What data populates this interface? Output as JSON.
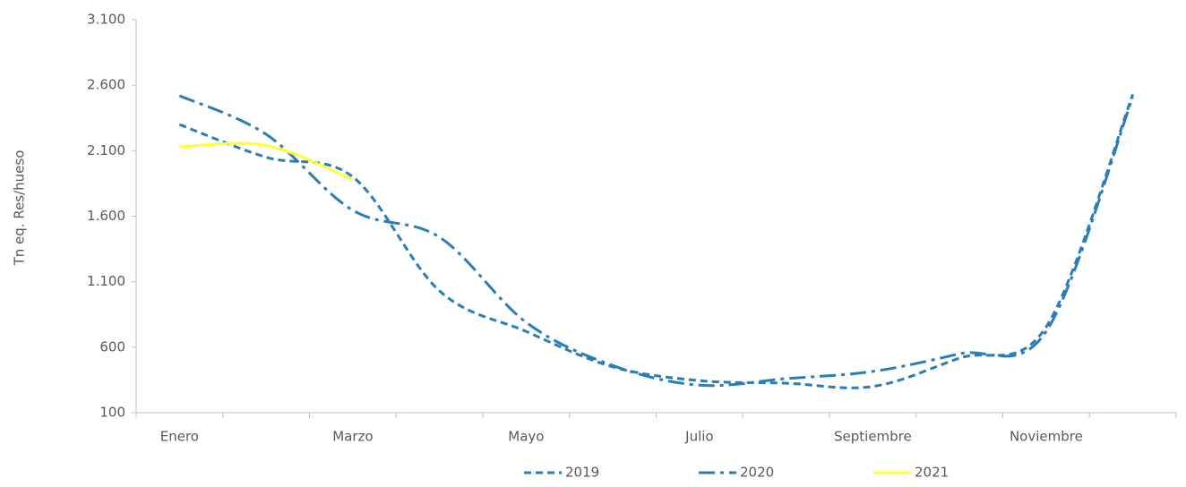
{
  "chart_data": {
    "type": "line",
    "y_label": "Tn eq. Res/hueso",
    "categories": [
      "Enero",
      null,
      "Marzo",
      null,
      "Mayo",
      null,
      "Julio",
      null,
      "Septiembre",
      null,
      "Noviembre",
      null
    ],
    "series": [
      {
        "name": "2019",
        "color": "#2a7db5",
        "dash": "dashed",
        "values": [
          2300,
          2050,
          1900,
          1030,
          720,
          450,
          345,
          325,
          300,
          517,
          755,
          2530
        ]
      },
      {
        "name": "2020",
        "color": "#2a7db5",
        "dash": "dashdot",
        "values": [
          2520,
          2225,
          1645,
          1440,
          790,
          460,
          310,
          360,
          415,
          550,
          720,
          2510
        ]
      },
      {
        "name": "2021",
        "color": "#ffff33",
        "dash": "solid",
        "values": [
          2130,
          2140,
          1880,
          null,
          null,
          null,
          null,
          null,
          null,
          null,
          null,
          null
        ]
      }
    ],
    "ylim": [
      100,
      3100
    ],
    "yticks": [
      100,
      600,
      {
        "value": 1100,
        "label": "1.100"
      },
      {
        "value": 1600,
        "label": "1.600"
      },
      {
        "value": 2100,
        "label": "2.100"
      },
      {
        "value": 2600,
        "label": "2.600"
      },
      {
        "value": 3100,
        "label": "3.100"
      }
    ],
    "grid": false,
    "legend": "bottom",
    "smooth": true
  }
}
